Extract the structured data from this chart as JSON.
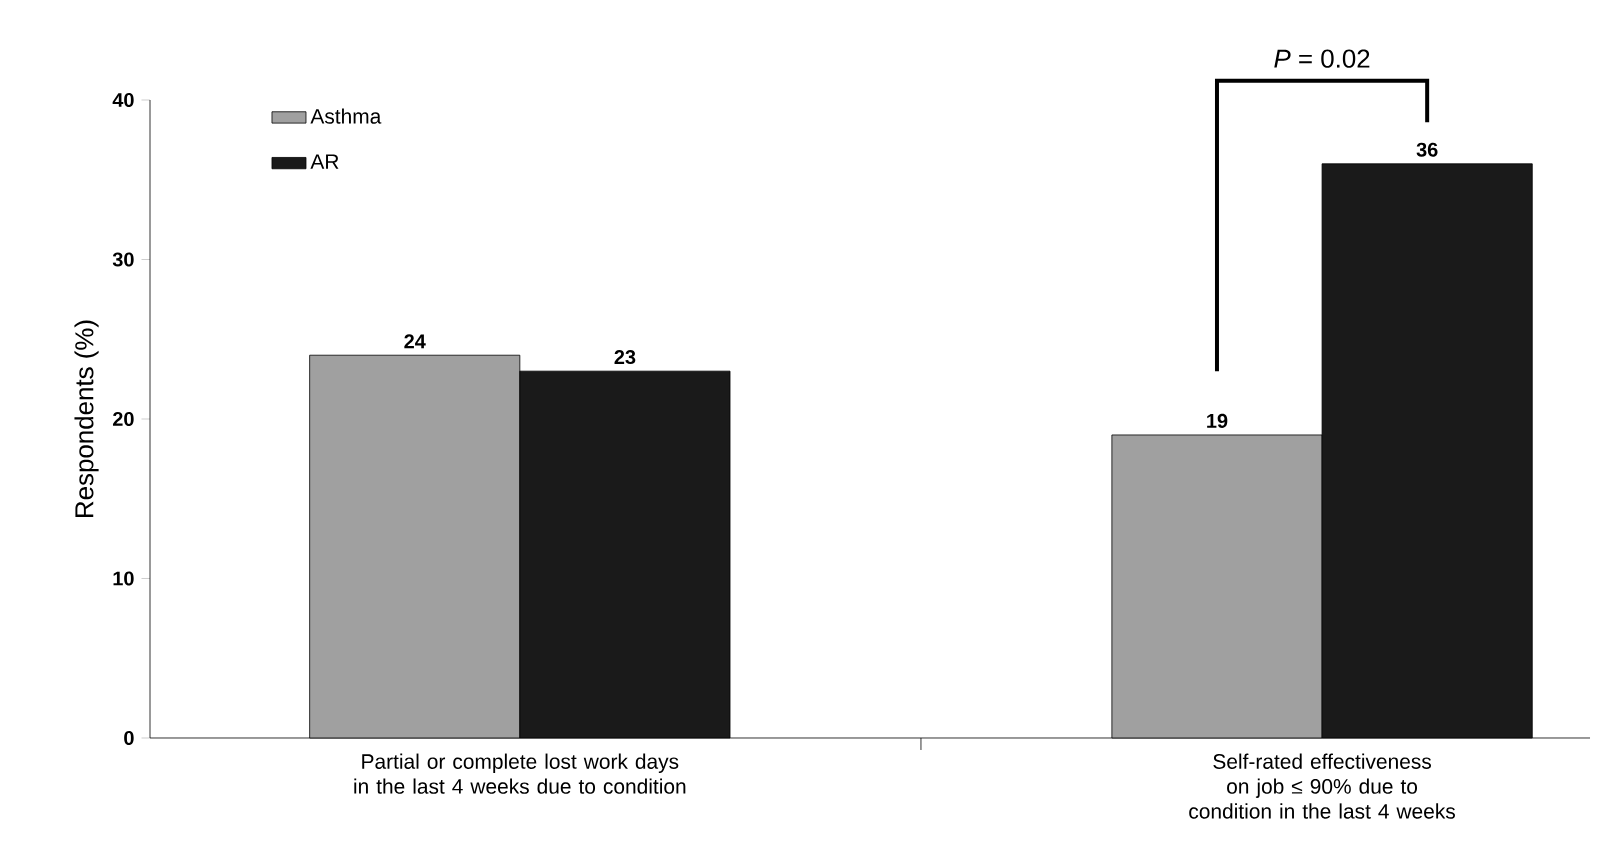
{
  "chart_data": {
    "type": "bar",
    "categories": [
      "Partial or complete lost work days in the last 4 weeks due to condition",
      "Self-rated effectiveness on job ≤ 90% due to condition in the last 4 weeks"
    ],
    "series": [
      {
        "name": "Asthma",
        "color": "#a0a0a0",
        "values": [
          24,
          19
        ]
      },
      {
        "name": "AR",
        "color": "#1a1a1a",
        "values": [
          23,
          36
        ]
      }
    ],
    "ylabel": "Respondents (%)",
    "ylim": [
      0,
      40
    ],
    "yticks": [
      0,
      10,
      20,
      30,
      40
    ],
    "data_labels": true,
    "legend": "top left",
    "grid": false,
    "annotations": [
      "*P* = 0.02"
    ]
  }
}
